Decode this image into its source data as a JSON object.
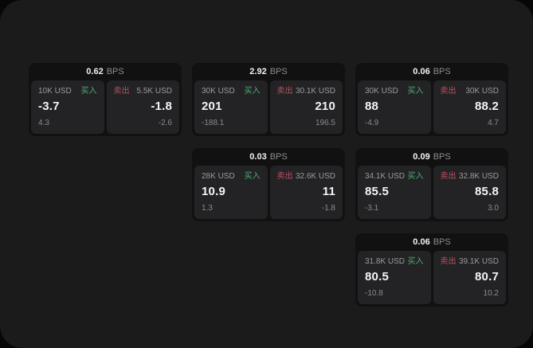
{
  "labels": {
    "buy": "买入",
    "sell": "卖出",
    "bps_suffix": "BPS"
  },
  "colors": {
    "buy": "#4fae72",
    "sell": "#bb5260",
    "panel": "#1b1b1c",
    "card": "#111112",
    "tile": "#232325",
    "text_primary": "#f4f4f5",
    "text_muted": "#8d8d8f"
  },
  "cards": [
    {
      "bps": "0.62",
      "buy": {
        "size": "10K USD",
        "value": "-3.7",
        "delta": "4.3"
      },
      "sell": {
        "size": "5.5K USD",
        "value": "-1.8",
        "delta": "-2.6"
      }
    },
    {
      "bps": "2.92",
      "buy": {
        "size": "30K USD",
        "value": "201",
        "delta": "-188.1"
      },
      "sell": {
        "size": "30.1K USD",
        "value": "210",
        "delta": "196.5"
      }
    },
    {
      "bps": "0.06",
      "buy": {
        "size": "30K USD",
        "value": "88",
        "delta": "-4.9"
      },
      "sell": {
        "size": "30K USD",
        "value": "88.2",
        "delta": "4.7"
      }
    },
    {
      "bps": "0.03",
      "buy": {
        "size": "28K USD",
        "value": "10.9",
        "delta": "1.3"
      },
      "sell": {
        "size": "32.6K USD",
        "value": "11",
        "delta": "-1.8"
      }
    },
    {
      "bps": "0.09",
      "buy": {
        "size": "34.1K USD",
        "value": "85.5",
        "delta": "-3.1"
      },
      "sell": {
        "size": "32.8K USD",
        "value": "85.8",
        "delta": "3.0"
      }
    },
    {
      "bps": "0.06",
      "buy": {
        "size": "31.8K USD",
        "value": "80.5",
        "delta": "-10.8"
      },
      "sell": {
        "size": "39.1K USD",
        "value": "80.7",
        "delta": "10.2"
      }
    }
  ]
}
